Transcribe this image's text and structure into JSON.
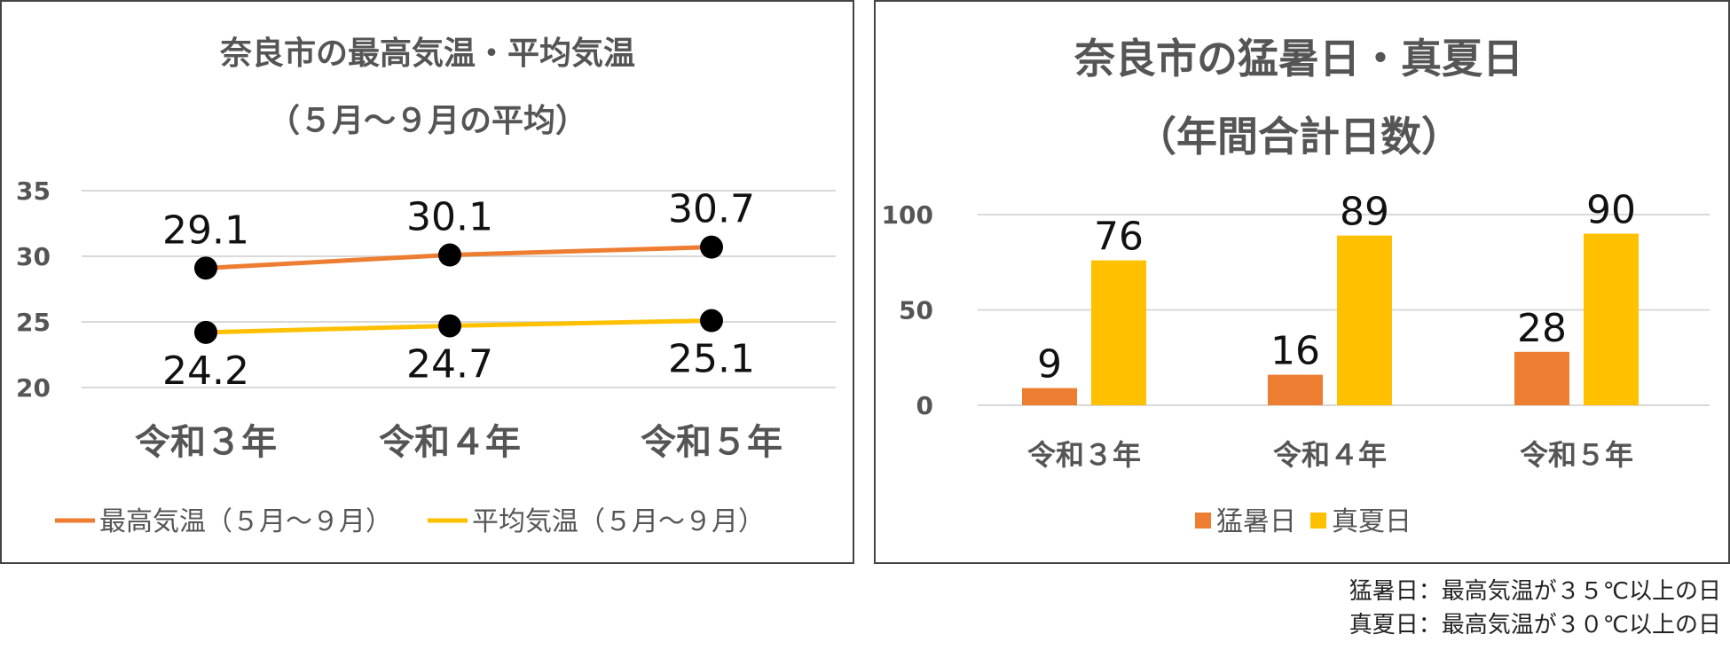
{
  "chart_data": [
    {
      "type": "line",
      "title": "奈良市の最高気温・平均気温",
      "subtitle": "（５月～９月の平均）",
      "categories": [
        "令和３年",
        "令和４年",
        "令和５年"
      ],
      "y_ticks": [
        "20",
        "25",
        "30",
        "35"
      ],
      "ylim": [
        20,
        35
      ],
      "grid": true,
      "legend_position": "bottom",
      "series": [
        {
          "name": "最高気温（５月～９月）",
          "values": [
            29.1,
            30.1,
            30.7
          ],
          "labels": [
            "29.1",
            "30.1",
            "30.7"
          ],
          "color": "#ED7D31"
        },
        {
          "name": "平均気温（５月～９月）",
          "values": [
            24.2,
            24.7,
            25.1
          ],
          "labels": [
            "24.2",
            "24.7",
            "25.1"
          ],
          "color": "#FFC000"
        }
      ]
    },
    {
      "type": "bar",
      "title": "奈良市の猛暑日・真夏日",
      "subtitle": "（年間合計日数）",
      "categories": [
        "令和３年",
        "令和４年",
        "令和５年"
      ],
      "y_ticks": [
        "0",
        "50",
        "100"
      ],
      "ylim": [
        0,
        100
      ],
      "grid": true,
      "legend_position": "bottom",
      "series": [
        {
          "name": "猛暑日",
          "values": [
            9,
            16,
            28
          ],
          "labels": [
            "9",
            "16",
            "28"
          ],
          "color": "#ED7D31"
        },
        {
          "name": "真夏日",
          "values": [
            76,
            89,
            90
          ],
          "labels": [
            "76",
            "89",
            "90"
          ],
          "color": "#FFC000"
        }
      ]
    }
  ],
  "notes": [
    "猛暑日：最高気温が３５℃以上の日",
    "真夏日：最高気温が３０℃以上の日"
  ]
}
